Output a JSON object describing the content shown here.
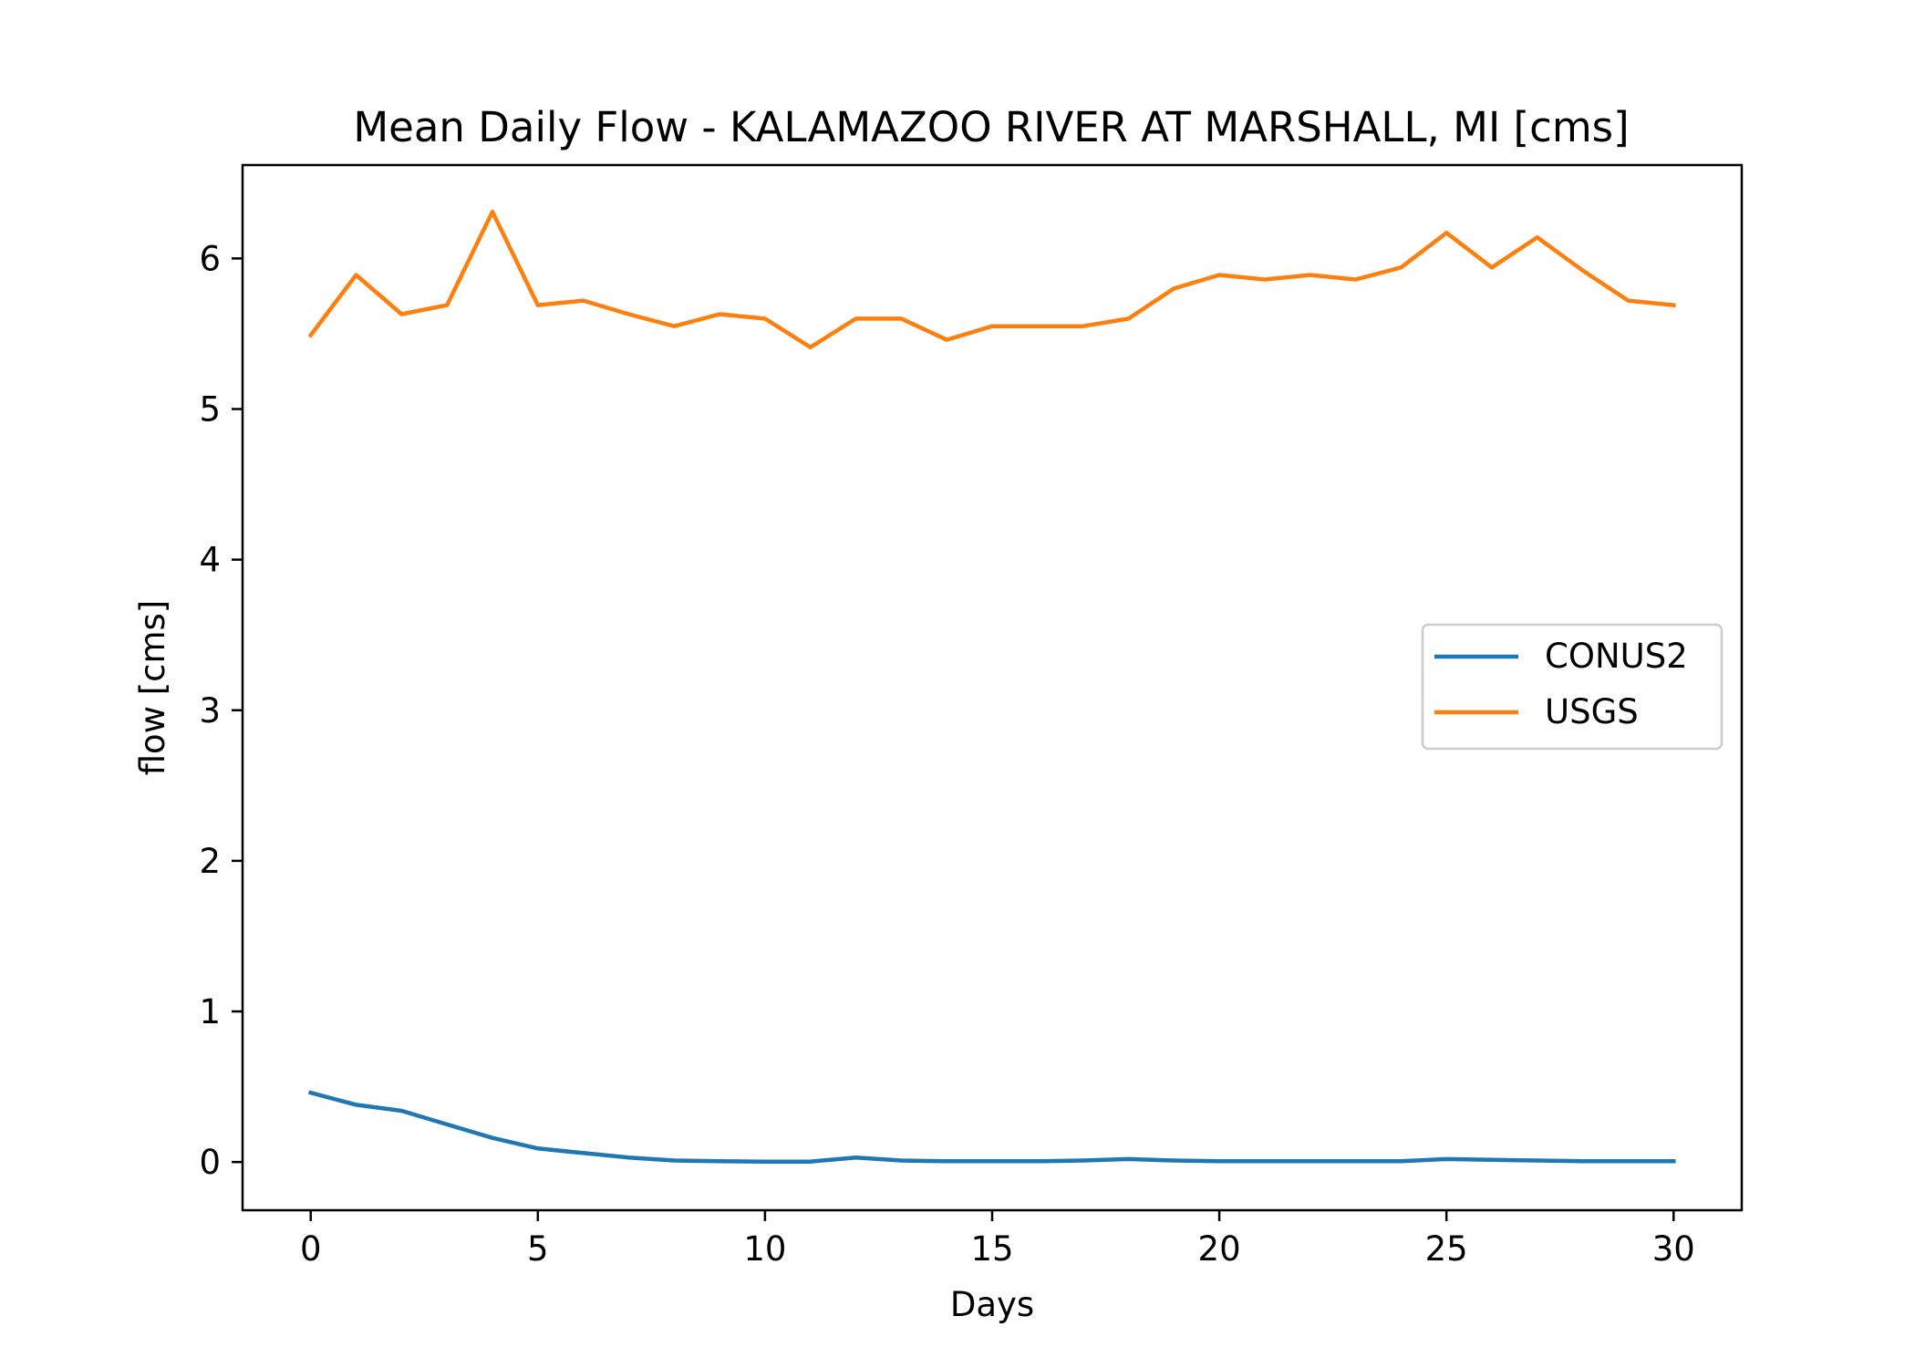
{
  "chart_data": {
    "type": "line",
    "title": "Mean Daily Flow - KALAMAZOO RIVER AT MARSHALL, MI [cms]",
    "xlabel": "Days",
    "ylabel": "flow [cms]",
    "xlim": [
      -1.5,
      31.5
    ],
    "ylim": [
      -0.32,
      6.62
    ],
    "xticks": [
      0,
      5,
      10,
      15,
      20,
      25,
      30
    ],
    "yticks": [
      0,
      1,
      2,
      3,
      4,
      5,
      6
    ],
    "grid": false,
    "legend_position": "center-right",
    "x": [
      0,
      1,
      2,
      3,
      4,
      5,
      6,
      7,
      8,
      9,
      10,
      11,
      12,
      13,
      14,
      15,
      16,
      17,
      18,
      19,
      20,
      21,
      22,
      23,
      24,
      25,
      26,
      27,
      28,
      29,
      30
    ],
    "series": [
      {
        "name": "CONUS2",
        "color": "#1f77b4",
        "values": [
          0.46,
          0.38,
          0.34,
          0.25,
          0.16,
          0.09,
          0.06,
          0.03,
          0.01,
          0.005,
          0.003,
          0.003,
          0.03,
          0.01,
          0.005,
          0.005,
          0.005,
          0.01,
          0.02,
          0.01,
          0.005,
          0.005,
          0.005,
          0.005,
          0.005,
          0.02,
          0.015,
          0.01,
          0.005,
          0.005,
          0.005
        ]
      },
      {
        "name": "USGS",
        "color": "#ff7f0e",
        "values": [
          5.49,
          5.89,
          5.63,
          5.69,
          6.31,
          5.69,
          5.72,
          5.63,
          5.55,
          5.63,
          5.6,
          5.41,
          5.6,
          5.6,
          5.46,
          5.55,
          5.55,
          5.55,
          5.6,
          5.8,
          5.89,
          5.86,
          5.89,
          5.86,
          5.94,
          6.17,
          5.94,
          6.14,
          5.92,
          5.72,
          5.69
        ]
      }
    ]
  }
}
